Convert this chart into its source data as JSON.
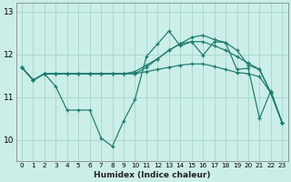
{
  "xlabel": "Humidex (Indice chaleur)",
  "bg_color": "#cceee8",
  "grid_color": "#aad8d0",
  "line_color": "#1a7a6e",
  "xlim": [
    -0.5,
    23.5
  ],
  "ylim": [
    9.5,
    13.2
  ],
  "yticks": [
    10,
    11,
    12,
    13
  ],
  "xticks": [
    0,
    1,
    2,
    3,
    4,
    5,
    6,
    7,
    8,
    9,
    10,
    11,
    12,
    13,
    14,
    15,
    16,
    17,
    18,
    19,
    20,
    21,
    22,
    23
  ],
  "series": [
    [
      11.7,
      11.4,
      11.55,
      11.25,
      10.7,
      10.7,
      10.7,
      10.05,
      9.85,
      10.45,
      10.95,
      11.95,
      12.25,
      12.55,
      12.2,
      12.3,
      11.98,
      12.3,
      12.28,
      11.65,
      11.68,
      10.5,
      11.15,
      10.4
    ],
    [
      11.7,
      11.4,
      11.55,
      11.55,
      11.55,
      11.55,
      11.55,
      11.55,
      11.55,
      11.55,
      11.55,
      11.6,
      11.65,
      11.7,
      11.75,
      11.78,
      11.78,
      11.72,
      11.65,
      11.58,
      11.55,
      11.48,
      11.1,
      10.4
    ],
    [
      11.7,
      11.4,
      11.55,
      11.55,
      11.55,
      11.55,
      11.55,
      11.55,
      11.55,
      11.55,
      11.6,
      11.75,
      11.9,
      12.1,
      12.25,
      12.3,
      12.3,
      12.2,
      12.1,
      11.95,
      11.8,
      11.65,
      11.1,
      10.4
    ],
    [
      11.7,
      11.4,
      11.55,
      11.55,
      11.55,
      11.55,
      11.55,
      11.55,
      11.55,
      11.55,
      11.55,
      11.7,
      11.9,
      12.1,
      12.25,
      12.4,
      12.45,
      12.35,
      12.28,
      12.1,
      11.75,
      11.65,
      11.1,
      10.4
    ]
  ]
}
